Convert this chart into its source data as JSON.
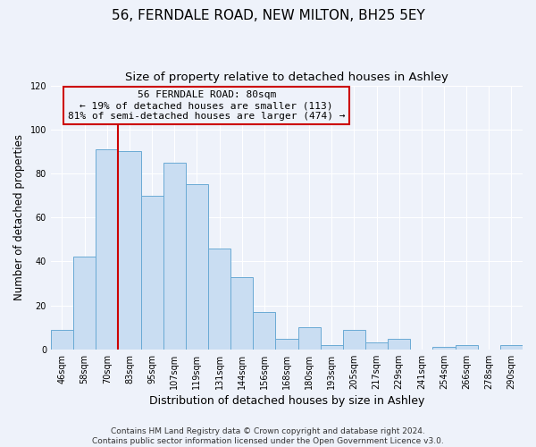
{
  "title": "56, FERNDALE ROAD, NEW MILTON, BH25 5EY",
  "subtitle": "Size of property relative to detached houses in Ashley",
  "xlabel": "Distribution of detached houses by size in Ashley",
  "ylabel": "Number of detached properties",
  "bar_labels": [
    "46sqm",
    "58sqm",
    "70sqm",
    "83sqm",
    "95sqm",
    "107sqm",
    "119sqm",
    "131sqm",
    "144sqm",
    "156sqm",
    "168sqm",
    "180sqm",
    "193sqm",
    "205sqm",
    "217sqm",
    "229sqm",
    "241sqm",
    "254sqm",
    "266sqm",
    "278sqm",
    "290sqm"
  ],
  "bar_values": [
    9,
    42,
    91,
    90,
    70,
    85,
    75,
    46,
    33,
    17,
    5,
    10,
    2,
    9,
    3,
    5,
    0,
    1,
    2,
    0,
    2
  ],
  "bar_color": "#c9ddf2",
  "bar_edge_color": "#6aaad4",
  "ylim": [
    0,
    120
  ],
  "yticks": [
    0,
    20,
    40,
    60,
    80,
    100,
    120
  ],
  "vline_x_index": 3,
  "vline_color": "#cc0000",
  "annotation_title": "56 FERNDALE ROAD: 80sqm",
  "annotation_line1": "← 19% of detached houses are smaller (113)",
  "annotation_line2": "81% of semi-detached houses are larger (474) →",
  "annotation_box_color": "#cc0000",
  "footer_line1": "Contains HM Land Registry data © Crown copyright and database right 2024.",
  "footer_line2": "Contains public sector information licensed under the Open Government Licence v3.0.",
  "background_color": "#eef2fa",
  "grid_color": "#ffffff",
  "title_fontsize": 11,
  "subtitle_fontsize": 9.5,
  "xlabel_fontsize": 9,
  "ylabel_fontsize": 8.5,
  "tick_fontsize": 7,
  "footer_fontsize": 6.5,
  "annotation_fontsize": 8
}
